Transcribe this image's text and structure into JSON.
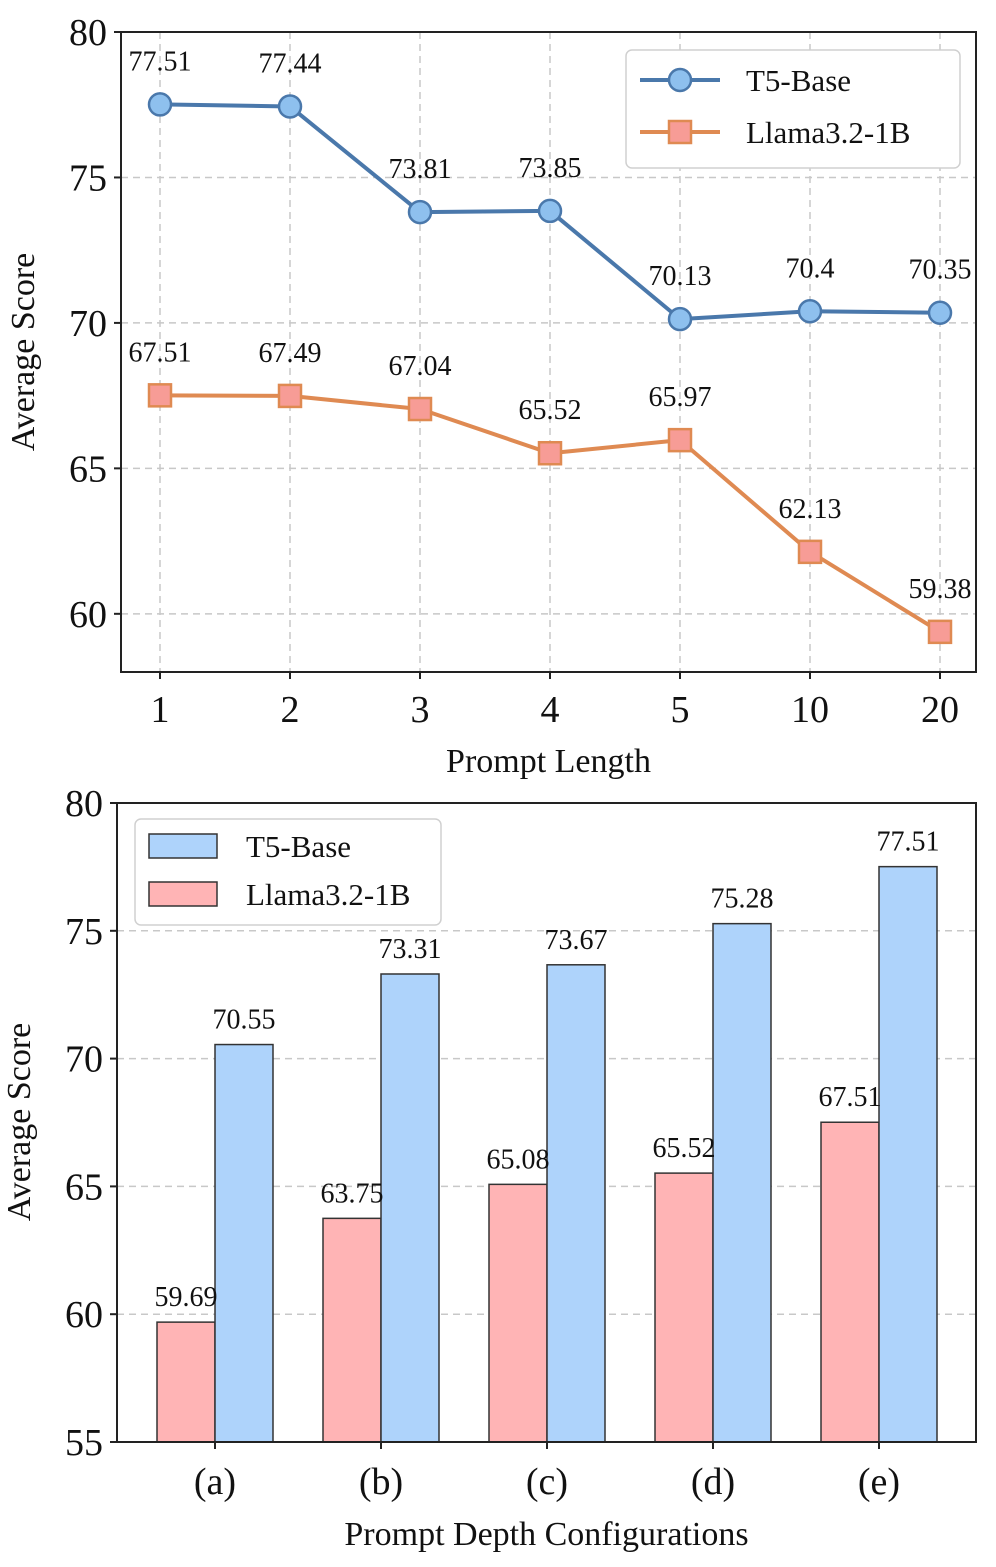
{
  "chart_data": [
    {
      "type": "line",
      "title": "",
      "xlabel": "Prompt Length",
      "ylabel": "Average Score",
      "categories": [
        "1",
        "2",
        "3",
        "4",
        "5",
        "10",
        "20"
      ],
      "ylim": [
        58,
        80
      ],
      "yticks": [
        60,
        65,
        70,
        75,
        80
      ],
      "grid": true,
      "legend_position": "top-right",
      "series": [
        {
          "name": "T5-Base",
          "marker": "circle",
          "line_color": "#4a78ab",
          "marker_fill": "#8ec0ee",
          "values": [
            77.51,
            77.44,
            73.81,
            73.85,
            70.13,
            70.4,
            70.35
          ],
          "labels": [
            "77.51",
            "77.44",
            "73.81",
            "73.85",
            "70.13",
            "70.4",
            "70.35"
          ]
        },
        {
          "name": "Llama3.2-1B",
          "marker": "square",
          "line_color": "#df8a52",
          "marker_fill": "#f79c96",
          "values": [
            67.51,
            67.49,
            67.04,
            65.52,
            65.97,
            62.13,
            59.38
          ],
          "labels": [
            "67.51",
            "67.49",
            "67.04",
            "65.52",
            "65.97",
            "62.13",
            "59.38"
          ]
        }
      ]
    },
    {
      "type": "bar",
      "title": "",
      "xlabel": "Prompt Depth Configurations",
      "ylabel": "Average Score",
      "categories": [
        "(a)",
        "(b)",
        "(c)",
        "(d)",
        "(e)"
      ],
      "ylim": [
        55,
        80
      ],
      "yticks": [
        55,
        60,
        65,
        70,
        75,
        80
      ],
      "grid": true,
      "legend_position": "top-left",
      "series": [
        {
          "name": "Llama3.2-1B",
          "color": "#ffb4b5",
          "values": [
            59.69,
            63.75,
            65.08,
            65.52,
            67.51
          ],
          "labels": [
            "59.69",
            "63.75",
            "65.08",
            "65.52",
            "67.51"
          ]
        },
        {
          "name": "T5-Base",
          "color": "#aed3fb",
          "values": [
            70.55,
            73.31,
            73.67,
            75.28,
            77.51
          ],
          "labels": [
            "70.55",
            "73.31",
            "73.67",
            "75.28",
            "77.51"
          ]
        }
      ],
      "legend_order": [
        "T5-Base",
        "Llama3.2-1B"
      ]
    }
  ],
  "colors": {
    "line_stroke": "#333333",
    "bar_edge": "#333333"
  }
}
